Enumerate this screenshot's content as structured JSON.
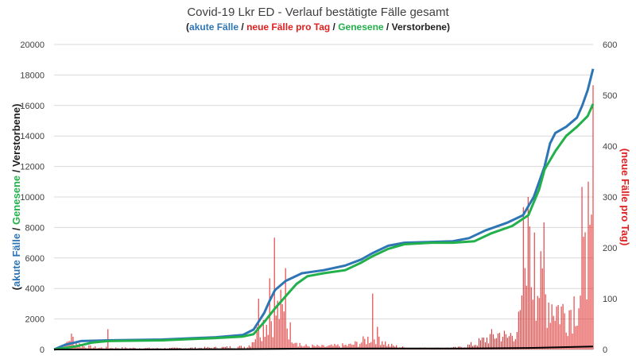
{
  "chart_data": {
    "type": "line",
    "title": "Covid-19 Lkr ED - Verlauf bestätigte Fälle gesamt",
    "subtitle_parts": [
      {
        "text": "(",
        "color": "#202020"
      },
      {
        "text": "akute Fälle",
        "color": "#2E75B6"
      },
      {
        "text": " / ",
        "color": "#202020"
      },
      {
        "text": "neue Fälle pro Tag",
        "color": "#E02020"
      },
      {
        "text": " / ",
        "color": "#202020"
      },
      {
        "text": "Genesene",
        "color": "#22B04B"
      },
      {
        "text": " / ",
        "color": "#202020"
      },
      {
        "text": "Verstorbene",
        "color": "#202020"
      },
      {
        "text": ")",
        "color": "#202020"
      }
    ],
    "y_left_label_parts": [
      {
        "text": "(",
        "color": "#202020"
      },
      {
        "text": "akute Fälle",
        "color": "#2E75B6"
      },
      {
        "text": " / ",
        "color": "#202020"
      },
      {
        "text": "Genesene",
        "color": "#22B04B"
      },
      {
        "text": " / Verstorbene)",
        "color": "#202020"
      }
    ],
    "y_right_label": "(neue Fälle pro Tag)",
    "y_right_label_color": "#E02020",
    "y_left": {
      "min": 0,
      "max": 20000,
      "ticks": [
        "0",
        "2000",
        "4000",
        "6000",
        "8000",
        "10000",
        "12000",
        "14000",
        "16000",
        "18000",
        "20000"
      ]
    },
    "y_right": {
      "min": 0,
      "max": 600,
      "ticks": [
        "0",
        "100",
        "200",
        "300",
        "400",
        "500",
        "600"
      ]
    },
    "grid": true,
    "x": {
      "min": 0,
      "max": 100
    },
    "series": [
      {
        "axis": "left",
        "color": "#2E75B6",
        "points": [
          [
            0,
            0
          ],
          [
            2,
            300
          ],
          [
            5,
            550
          ],
          [
            10,
            600
          ],
          [
            20,
            650
          ],
          [
            30,
            800
          ],
          [
            35,
            950
          ],
          [
            37,
            1300
          ],
          [
            39,
            2400
          ],
          [
            40,
            3200
          ],
          [
            41,
            3900
          ],
          [
            43,
            4500
          ],
          [
            46,
            5000
          ],
          [
            50,
            5200
          ],
          [
            54,
            5500
          ],
          [
            57,
            5900
          ],
          [
            59,
            6300
          ],
          [
            62,
            6800
          ],
          [
            65,
            7000
          ],
          [
            70,
            7050
          ],
          [
            74,
            7100
          ],
          [
            77,
            7300
          ],
          [
            80,
            7800
          ],
          [
            84,
            8300
          ],
          [
            87,
            8800
          ],
          [
            89,
            10000
          ],
          [
            91,
            12000
          ],
          [
            92,
            13500
          ],
          [
            93,
            14200
          ],
          [
            95,
            14600
          ],
          [
            97,
            15200
          ],
          [
            98,
            16000
          ],
          [
            99,
            17000
          ],
          [
            100,
            18400
          ]
        ]
      },
      {
        "axis": "left",
        "color": "#22B04B",
        "points": [
          [
            0,
            0
          ],
          [
            4,
            200
          ],
          [
            7,
            450
          ],
          [
            10,
            550
          ],
          [
            20,
            600
          ],
          [
            30,
            750
          ],
          [
            35,
            850
          ],
          [
            37,
            1000
          ],
          [
            39,
            1800
          ],
          [
            41,
            2700
          ],
          [
            43,
            3500
          ],
          [
            45,
            4300
          ],
          [
            47,
            4800
          ],
          [
            50,
            5000
          ],
          [
            54,
            5200
          ],
          [
            57,
            5700
          ],
          [
            59,
            6100
          ],
          [
            62,
            6600
          ],
          [
            65,
            6900
          ],
          [
            70,
            7000
          ],
          [
            74,
            7000
          ],
          [
            78,
            7100
          ],
          [
            81,
            7600
          ],
          [
            85,
            8100
          ],
          [
            88,
            8800
          ],
          [
            90,
            10500
          ],
          [
            91,
            11800
          ],
          [
            93,
            13000
          ],
          [
            95,
            14000
          ],
          [
            97,
            14600
          ],
          [
            99,
            15300
          ],
          [
            100,
            16100
          ]
        ]
      },
      {
        "axis": "left",
        "color": "#000000",
        "points": [
          [
            0,
            0
          ],
          [
            20,
            5
          ],
          [
            35,
            20
          ],
          [
            45,
            50
          ],
          [
            60,
            60
          ],
          [
            75,
            65
          ],
          [
            88,
            100
          ],
          [
            100,
            200
          ]
        ]
      }
    ],
    "bars": {
      "axis": "right",
      "color": "#E02020",
      "envelope": [
        [
          0,
          0
        ],
        [
          2,
          10
        ],
        [
          3,
          35
        ],
        [
          4,
          25
        ],
        [
          5,
          10
        ],
        [
          8,
          5
        ],
        [
          20,
          3
        ],
        [
          30,
          5
        ],
        [
          36,
          8
        ],
        [
          37,
          30
        ],
        [
          38,
          55
        ],
        [
          39,
          75
        ],
        [
          40,
          85
        ],
        [
          41,
          100
        ],
        [
          42,
          110
        ],
        [
          43,
          80
        ],
        [
          44,
          45
        ],
        [
          45,
          25
        ],
        [
          46,
          10
        ],
        [
          50,
          8
        ],
        [
          55,
          12
        ],
        [
          57,
          20
        ],
        [
          59,
          35
        ],
        [
          60,
          40
        ],
        [
          61,
          25
        ],
        [
          62,
          12
        ],
        [
          65,
          5
        ],
        [
          70,
          3
        ],
        [
          75,
          5
        ],
        [
          78,
          15
        ],
        [
          81,
          35
        ],
        [
          83,
          45
        ],
        [
          84,
          30
        ],
        [
          86,
          60
        ],
        [
          87,
          110
        ],
        [
          88,
          240
        ],
        [
          89,
          200
        ],
        [
          90,
          180
        ],
        [
          91,
          150
        ],
        [
          93,
          120
        ],
        [
          95,
          100
        ],
        [
          97,
          140
        ],
        [
          98,
          180
        ],
        [
          99,
          260
        ],
        [
          100,
          220
        ]
      ],
      "peaks": [
        [
          10,
          40
        ],
        [
          38,
          100
        ],
        [
          40,
          140
        ],
        [
          41,
          220
        ],
        [
          43,
          160
        ],
        [
          59,
          110
        ],
        [
          87,
          280
        ],
        [
          88,
          300
        ],
        [
          89,
          230
        ],
        [
          91,
          250
        ],
        [
          98,
          320
        ],
        [
          99,
          330
        ],
        [
          100,
          520
        ]
      ]
    }
  }
}
